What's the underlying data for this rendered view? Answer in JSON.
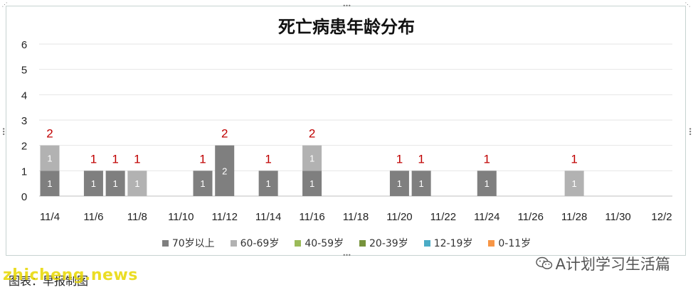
{
  "chart_data": {
    "type": "bar",
    "stacked": true,
    "title": "死亡病患年龄分布",
    "categories": [
      "11/4",
      "11/5",
      "11/6",
      "11/7",
      "11/8",
      "11/9",
      "11/10",
      "11/11",
      "11/12",
      "11/13",
      "11/14",
      "11/15",
      "11/16",
      "11/17",
      "11/18",
      "11/19",
      "11/20",
      "11/21",
      "11/22",
      "11/23",
      "11/24",
      "11/25",
      "11/26",
      "11/27",
      "11/28",
      "11/29",
      "11/30",
      "12/1",
      "12/2"
    ],
    "x_tick_labels": [
      "11/4",
      "11/6",
      "11/8",
      "11/10",
      "11/12",
      "11/14",
      "11/16",
      "11/18",
      "11/20",
      "11/22",
      "11/24",
      "11/26",
      "11/28",
      "11/30",
      "12/2"
    ],
    "series": [
      {
        "name": "70岁以上",
        "color": "#7f7f7f",
        "values": [
          1,
          0,
          1,
          1,
          0,
          0,
          0,
          1,
          2,
          0,
          1,
          0,
          1,
          0,
          0,
          0,
          1,
          1,
          0,
          0,
          1,
          0,
          0,
          0,
          0,
          0,
          0,
          0,
          0
        ]
      },
      {
        "name": "60-69岁",
        "color": "#b2b2b2",
        "values": [
          1,
          0,
          0,
          0,
          1,
          0,
          0,
          0,
          0,
          0,
          0,
          0,
          1,
          0,
          0,
          0,
          0,
          0,
          0,
          0,
          0,
          0,
          0,
          0,
          1,
          0,
          0,
          0,
          0
        ]
      },
      {
        "name": "40-59岁",
        "color": "#9bbb59",
        "values": [
          0,
          0,
          0,
          0,
          0,
          0,
          0,
          0,
          0,
          0,
          0,
          0,
          0,
          0,
          0,
          0,
          0,
          0,
          0,
          0,
          0,
          0,
          0,
          0,
          0,
          0,
          0,
          0,
          0
        ]
      },
      {
        "name": "20-39岁",
        "color": "#77933c",
        "values": [
          0,
          0,
          0,
          0,
          0,
          0,
          0,
          0,
          0,
          0,
          0,
          0,
          0,
          0,
          0,
          0,
          0,
          0,
          0,
          0,
          0,
          0,
          0,
          0,
          0,
          0,
          0,
          0,
          0
        ]
      },
      {
        "name": "12-19岁",
        "color": "#4bacc6",
        "values": [
          0,
          0,
          0,
          0,
          0,
          0,
          0,
          0,
          0,
          0,
          0,
          0,
          0,
          0,
          0,
          0,
          0,
          0,
          0,
          0,
          0,
          0,
          0,
          0,
          0,
          0,
          0,
          0,
          0
        ]
      },
      {
        "name": "0-11岁",
        "color": "#f79646",
        "values": [
          0,
          0,
          0,
          0,
          0,
          0,
          0,
          0,
          0,
          0,
          0,
          0,
          0,
          0,
          0,
          0,
          0,
          0,
          0,
          0,
          0,
          0,
          0,
          0,
          0,
          0,
          0,
          0,
          0
        ]
      }
    ],
    "totals": [
      2,
      0,
      1,
      1,
      1,
      0,
      0,
      1,
      2,
      0,
      1,
      0,
      2,
      0,
      0,
      0,
      1,
      1,
      0,
      0,
      1,
      0,
      0,
      0,
      1,
      0,
      0,
      0,
      0
    ],
    "ylim": [
      0,
      6
    ],
    "yticks": [
      0,
      1,
      2,
      3,
      4,
      5,
      6
    ],
    "grid": true,
    "legend_position": "bottom",
    "total_label_color": "#c00000"
  },
  "caption": "图表：早报制图",
  "watermark_left": "zhicheng.news",
  "watermark_right": "A计划学习生活篇"
}
